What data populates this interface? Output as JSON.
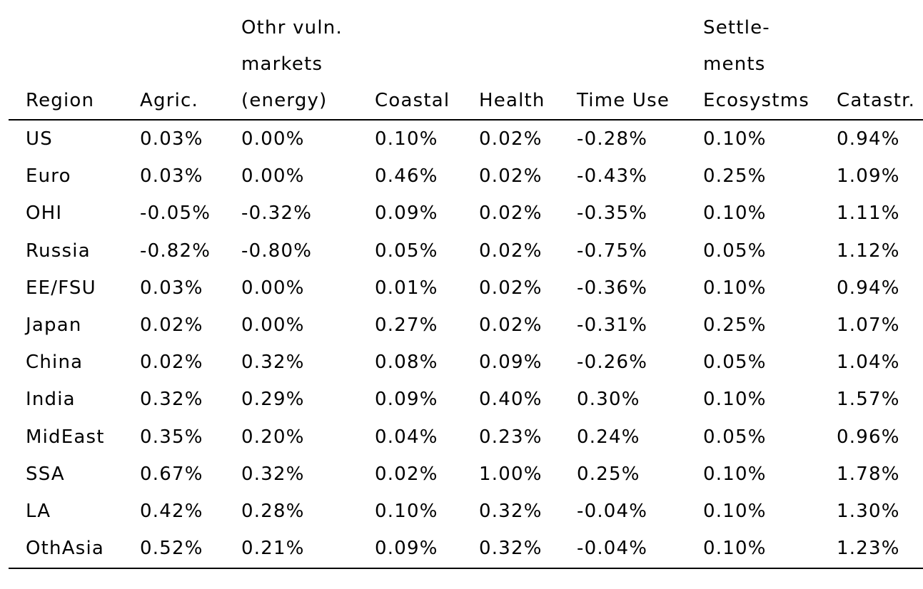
{
  "table": {
    "headers": {
      "region": [
        "Region"
      ],
      "agric": [
        "Agric."
      ],
      "other_markets": [
        "Othr vuln.",
        "markets",
        "(energy)"
      ],
      "coastal": [
        "Coastal"
      ],
      "health": [
        "Health"
      ],
      "time_use": [
        "Time Use"
      ],
      "settlements": [
        "Settle-",
        "ments",
        "Ecosystms"
      ],
      "catastr": [
        "Catastr."
      ]
    },
    "rows": [
      [
        "US",
        "0.03%",
        "0.00%",
        "0.10%",
        "0.02%",
        "-0.28%",
        "0.10%",
        "0.94%"
      ],
      [
        "Euro",
        "0.03%",
        "0.00%",
        "0.46%",
        "0.02%",
        "-0.43%",
        "0.25%",
        "1.09%"
      ],
      [
        "OHI",
        "-0.05%",
        "-0.32%",
        "0.09%",
        "0.02%",
        "-0.35%",
        "0.10%",
        "1.11%"
      ],
      [
        "Russia",
        "-0.82%",
        "-0.80%",
        "0.05%",
        "0.02%",
        "-0.75%",
        "0.05%",
        "1.12%"
      ],
      [
        "EE/FSU",
        "0.03%",
        "0.00%",
        "0.01%",
        "0.02%",
        "-0.36%",
        "0.10%",
        "0.94%"
      ],
      [
        "Japan",
        "0.02%",
        "0.00%",
        "0.27%",
        "0.02%",
        "-0.31%",
        "0.25%",
        "1.07%"
      ],
      [
        "China",
        "0.02%",
        "0.32%",
        "0.08%",
        "0.09%",
        "-0.26%",
        "0.05%",
        "1.04%"
      ],
      [
        "India",
        "0.32%",
        "0.29%",
        "0.09%",
        "0.40%",
        "0.30%",
        "0.10%",
        "1.57%"
      ],
      [
        "MidEast",
        "0.35%",
        "0.20%",
        "0.04%",
        "0.23%",
        "0.24%",
        "0.05%",
        "0.96%"
      ],
      [
        "SSA",
        "0.67%",
        "0.32%",
        "0.02%",
        "1.00%",
        "0.25%",
        "0.10%",
        "1.78%"
      ],
      [
        "LA",
        "0.42%",
        "0.28%",
        "0.10%",
        "0.32%",
        "-0.04%",
        "0.10%",
        "1.30%"
      ],
      [
        "OthAsia",
        "0.52%",
        "0.21%",
        "0.09%",
        "0.32%",
        "-0.04%",
        "0.10%",
        "1.23%"
      ]
    ]
  }
}
